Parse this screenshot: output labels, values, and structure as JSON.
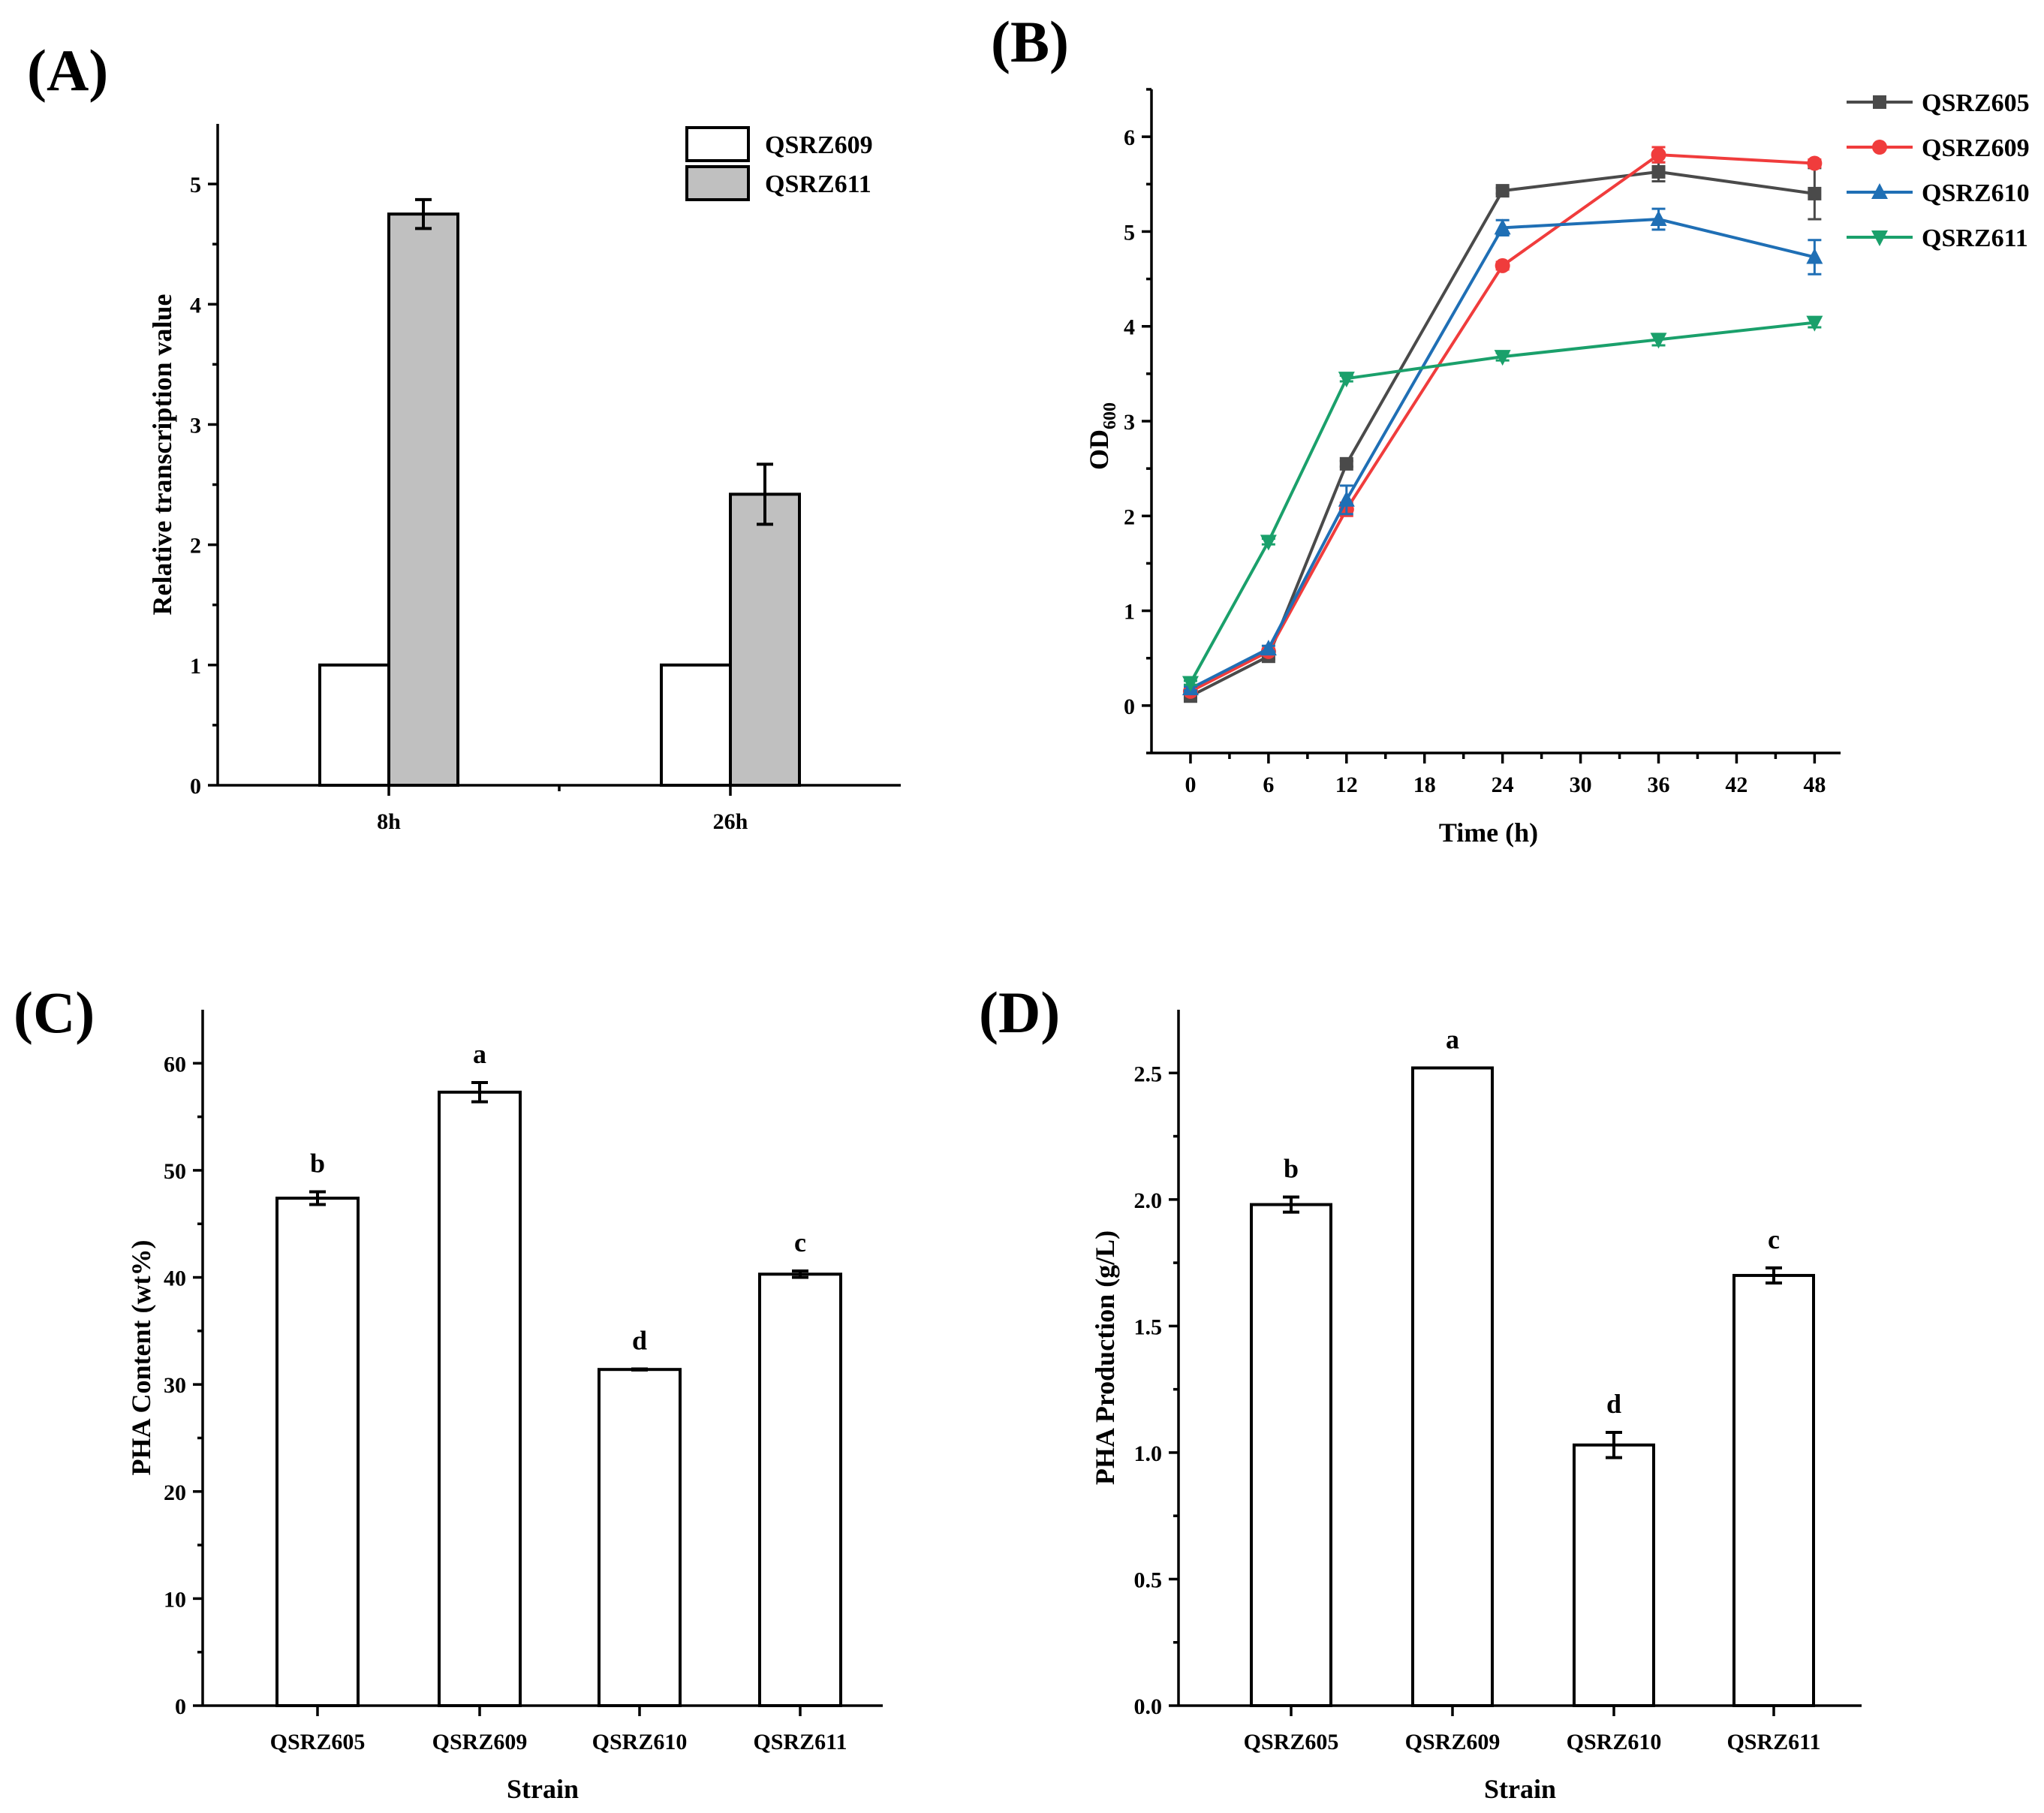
{
  "chart_data": [
    {
      "id": "A",
      "panel_label": "(A)",
      "type": "bar",
      "categories": [
        "8h",
        "26h"
      ],
      "series": [
        {
          "name": "QSRZ609",
          "values": [
            1,
            1
          ],
          "errors": [
            0,
            0
          ],
          "color": "#ffffff"
        },
        {
          "name": "QSRZ611",
          "values": [
            4.75,
            2.42
          ],
          "errors": [
            0.12,
            0.25
          ],
          "color": "#c0c0c0"
        }
      ],
      "xlabel": "",
      "ylabel": "Relative transcription value",
      "ylim": [
        0,
        5.5
      ],
      "yticks": [
        0,
        1,
        2,
        3,
        4,
        5
      ],
      "legend_position": "top-right"
    },
    {
      "id": "B",
      "panel_label": "(B)",
      "type": "line",
      "x": [
        0,
        6,
        12,
        24,
        36,
        48
      ],
      "series": [
        {
          "name": "QSRZ605",
          "marker": "square",
          "color": "#4a4a4a",
          "values": [
            0.1,
            0.52,
            2.55,
            5.43,
            5.63,
            5.4
          ],
          "errors": [
            0.02,
            0.03,
            0.03,
            0.03,
            0.1,
            0.27
          ]
        },
        {
          "name": "QSRZ609",
          "marker": "circle",
          "color": "#f03c3c",
          "values": [
            0.15,
            0.57,
            2.07,
            4.64,
            5.81,
            5.72
          ],
          "errors": [
            0.02,
            0.03,
            0.07,
            0.04,
            0.08,
            0.04
          ]
        },
        {
          "name": "QSRZ610",
          "marker": "triangle-up",
          "color": "#1f6fb5",
          "values": [
            0.18,
            0.6,
            2.17,
            5.04,
            5.13,
            4.73
          ],
          "errors": [
            0.02,
            0.03,
            0.15,
            0.08,
            0.11,
            0.18
          ]
        },
        {
          "name": "QSRZ611",
          "marker": "triangle-down",
          "color": "#1aa06b",
          "values": [
            0.24,
            1.73,
            3.45,
            3.68,
            3.86,
            4.04
          ],
          "errors": [
            0.02,
            0.03,
            0.03,
            0.04,
            0.06,
            0.05
          ]
        }
      ],
      "xlabel": "Time (h)",
      "ylabel_main": "OD",
      "ylabel_sub": "600",
      "xlim": [
        -3,
        50
      ],
      "ylim": [
        -0.5,
        6.5
      ],
      "xticks": [
        0,
        6,
        12,
        18,
        24,
        30,
        36,
        42,
        48
      ],
      "yticks": [
        0,
        1,
        2,
        3,
        4,
        5,
        6
      ],
      "legend_position": "top-right"
    },
    {
      "id": "C",
      "panel_label": "(C)",
      "type": "bar",
      "categories": [
        "QSRZ605",
        "QSRZ609",
        "QSRZ610",
        "QSRZ611"
      ],
      "values": [
        47.4,
        57.3,
        31.4,
        40.3
      ],
      "errors": [
        0.6,
        0.9,
        0.05,
        0.3
      ],
      "significance": [
        "b",
        "a",
        "d",
        "c"
      ],
      "xlabel": "Strain",
      "ylabel": "PHA Content (wt%)",
      "ylim": [
        0,
        65
      ],
      "yticks": [
        0,
        10,
        20,
        30,
        40,
        50,
        60
      ]
    },
    {
      "id": "D",
      "panel_label": "(D)",
      "type": "bar",
      "categories": [
        "QSRZ605",
        "QSRZ609",
        "QSRZ610",
        "QSRZ611"
      ],
      "values": [
        1.98,
        2.52,
        1.03,
        1.7
      ],
      "errors": [
        0.03,
        0.0,
        0.05,
        0.03
      ],
      "significance": [
        "b",
        "a",
        "d",
        "c"
      ],
      "xlabel": "Strain",
      "ylabel": "PHA Production (g/L)",
      "ylim": [
        0,
        2.75
      ],
      "yticks": [
        0.0,
        0.5,
        1.0,
        1.5,
        2.0,
        2.5
      ],
      "ytick_labels": [
        "0.0",
        "0.5",
        "1.0",
        "1.5",
        "2.0",
        "2.5"
      ]
    }
  ]
}
